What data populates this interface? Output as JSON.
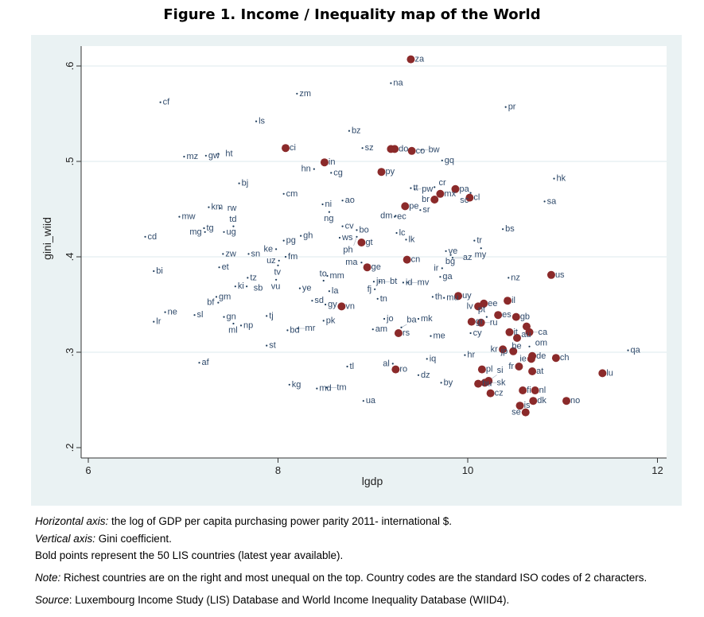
{
  "title": "Figure 1. Income / Inequality map of the World",
  "chart_data": {
    "type": "scatter",
    "xlabel": "lgdp",
    "ylabel": "gini_wiid",
    "xlim": [
      5.93,
      12.0
    ],
    "ylim": [
      0.19,
      0.62
    ],
    "xticks": [
      "6",
      "8",
      "10",
      "12"
    ],
    "yticks": [
      ".2",
      ".3",
      ".4",
      ".5",
      ".6"
    ],
    "xtick_values": [
      6,
      8,
      10,
      12
    ],
    "ytick_values": [
      0.2,
      0.3,
      0.4,
      0.5,
      0.6
    ],
    "grid": "horizontal",
    "colors": {
      "lis_marker": "#8B2A2A",
      "other_marker": "#1F3D5C",
      "label": "#2F4A6B",
      "grid": "#DCE9EC",
      "background": "#EAF2F3"
    },
    "points_other": [
      [
        "cf",
        6.76,
        0.562
      ],
      [
        "zm",
        8.2,
        0.571
      ],
      [
        "ls",
        7.77,
        0.542
      ],
      [
        "mz",
        7.01,
        0.505
      ],
      [
        "gw",
        7.24,
        0.506
      ],
      [
        "ht",
        7.37,
        0.508
      ],
      [
        "bj",
        7.59,
        0.477
      ],
      [
        "cm",
        8.06,
        0.466
      ],
      [
        "km",
        7.27,
        0.452
      ],
      [
        "rw",
        7.39,
        0.451
      ],
      [
        "mw",
        6.96,
        0.442
      ],
      [
        "tg",
        7.22,
        0.43
      ],
      [
        "mg",
        7.23,
        0.426
      ],
      [
        "ug",
        7.43,
        0.426
      ],
      [
        "td",
        7.53,
        0.432
      ],
      [
        "cd",
        6.6,
        0.421
      ],
      [
        "pg",
        8.06,
        0.417
      ],
      [
        "gh",
        8.24,
        0.422
      ],
      [
        "ke",
        7.98,
        0.408
      ],
      [
        "zw",
        7.42,
        0.403
      ],
      [
        "sn",
        7.69,
        0.403
      ],
      [
        "fm",
        8.08,
        0.4
      ],
      [
        "uz",
        8.01,
        0.396
      ],
      [
        "tv",
        8.0,
        0.391
      ],
      [
        "bi",
        6.69,
        0.385
      ],
      [
        "et",
        7.38,
        0.389
      ],
      [
        "tz",
        7.68,
        0.378
      ],
      [
        "vu",
        7.98,
        0.376
      ],
      [
        "ki",
        7.55,
        0.369
      ],
      [
        "sb",
        7.67,
        0.369
      ],
      [
        "ye",
        8.23,
        0.367
      ],
      [
        "gm",
        7.35,
        0.358
      ],
      [
        "bf",
        7.37,
        0.352
      ],
      [
        "ne",
        6.81,
        0.342
      ],
      [
        "sl",
        7.12,
        0.339
      ],
      [
        "lr",
        6.69,
        0.332
      ],
      [
        "gn",
        7.43,
        0.337
      ],
      [
        "ml",
        7.53,
        0.33
      ],
      [
        "np",
        7.61,
        0.328
      ],
      [
        "tj",
        7.88,
        0.338
      ],
      [
        "bd",
        8.1,
        0.323
      ],
      [
        "mr",
        8.21,
        0.325
      ],
      [
        "st",
        7.88,
        0.307
      ],
      [
        "af",
        7.17,
        0.289
      ],
      [
        "kg",
        8.12,
        0.266
      ],
      [
        "md",
        8.41,
        0.262
      ],
      [
        "tm",
        8.51,
        0.263
      ],
      [
        "ua",
        8.9,
        0.249
      ],
      [
        "tl",
        8.73,
        0.285
      ],
      [
        "ni",
        8.47,
        0.455
      ],
      [
        "ng",
        8.54,
        0.447
      ],
      [
        "ao",
        8.68,
        0.459
      ],
      [
        "hn",
        8.38,
        0.492
      ],
      [
        "cg",
        8.56,
        0.488
      ],
      [
        "bz",
        8.75,
        0.532
      ],
      [
        "sz",
        8.89,
        0.514
      ],
      [
        "na",
        9.19,
        0.582
      ],
      [
        "cv",
        8.68,
        0.432
      ],
      [
        "bo",
        8.83,
        0.428
      ],
      [
        "ws",
        8.65,
        0.42
      ],
      [
        "ph",
        8.83,
        0.421
      ],
      [
        "lc",
        9.25,
        0.425
      ],
      [
        "lk",
        9.35,
        0.418
      ],
      [
        "dm",
        9.24,
        0.443
      ],
      [
        "ec",
        9.23,
        0.442
      ],
      [
        "sr",
        9.5,
        0.449
      ],
      [
        "tt",
        9.4,
        0.472
      ],
      [
        "pw",
        9.44,
        0.471
      ],
      [
        "cr",
        9.65,
        0.473
      ],
      [
        "sc",
        10.03,
        0.467
      ],
      [
        "hk",
        10.91,
        0.482
      ],
      [
        "sa",
        10.81,
        0.458
      ],
      [
        "gq",
        9.73,
        0.501
      ],
      [
        "bw",
        9.51,
        0.512
      ],
      [
        "pr",
        10.4,
        0.557
      ],
      [
        "bs",
        10.37,
        0.429
      ],
      [
        "tr",
        10.07,
        0.417
      ],
      [
        "my",
        10.14,
        0.409
      ],
      [
        "ve",
        9.77,
        0.406
      ],
      [
        "bg",
        9.82,
        0.402
      ],
      [
        "az",
        9.84,
        0.399
      ],
      [
        "ma",
        8.88,
        0.394
      ],
      [
        "ir",
        9.73,
        0.388
      ],
      [
        "ga",
        9.71,
        0.379
      ],
      [
        "nz",
        10.43,
        0.378
      ],
      [
        "mm",
        8.52,
        0.38
      ],
      [
        "to",
        8.48,
        0.375
      ],
      [
        "la",
        8.54,
        0.364
      ],
      [
        "jm",
        9.01,
        0.374
      ],
      [
        "bt",
        9.07,
        0.374
      ],
      [
        "fj",
        9.02,
        0.366
      ],
      [
        "id",
        9.32,
        0.373
      ],
      [
        "mv",
        9.36,
        0.373
      ],
      [
        "tn",
        9.05,
        0.356
      ],
      [
        "th",
        9.63,
        0.358
      ],
      [
        "mu",
        9.75,
        0.357
      ],
      [
        "sd",
        8.36,
        0.354
      ],
      [
        "gy",
        8.5,
        0.35
      ],
      [
        "pk",
        8.48,
        0.333
      ],
      [
        "jo",
        9.12,
        0.335
      ],
      [
        "mk",
        9.48,
        0.335
      ],
      [
        "am",
        9.0,
        0.324
      ],
      [
        "ba",
        9.3,
        0.326
      ],
      [
        "me",
        9.61,
        0.317
      ],
      [
        "cy",
        10.03,
        0.32
      ],
      [
        "hr",
        9.97,
        0.297
      ],
      [
        "iq",
        9.57,
        0.293
      ],
      [
        "om",
        10.65,
        0.306
      ],
      [
        "qa",
        11.69,
        0.302
      ],
      [
        "dz",
        9.48,
        0.276
      ],
      [
        "by",
        9.72,
        0.268
      ],
      [
        "al",
        9.21,
        0.288
      ],
      [
        "pt",
        10.2,
        0.337
      ]
    ],
    "points_lis": [
      [
        "za",
        9.4,
        0.607
      ],
      [
        "ci",
        8.08,
        0.514
      ],
      [
        "",
        9.19,
        0.513
      ],
      [
        "do",
        9.23,
        0.513
      ],
      [
        "co",
        9.41,
        0.511
      ],
      [
        "in",
        8.49,
        0.499
      ],
      [
        "py",
        9.09,
        0.489
      ],
      [
        "pa",
        9.87,
        0.471
      ],
      [
        "mx",
        9.71,
        0.466
      ],
      [
        "br",
        9.65,
        0.46
      ],
      [
        "cl",
        10.02,
        0.462
      ],
      [
        "pe",
        9.34,
        0.453
      ],
      [
        "gt",
        8.88,
        0.415
      ],
      [
        "cn",
        9.36,
        0.397
      ],
      [
        "ge",
        8.94,
        0.389
      ],
      [
        "vn",
        8.67,
        0.348
      ],
      [
        "uy",
        9.9,
        0.359
      ],
      [
        "us",
        10.88,
        0.381
      ],
      [
        "ee",
        10.17,
        0.351
      ],
      [
        "lv",
        10.11,
        0.348
      ],
      [
        "es",
        10.32,
        0.339
      ],
      [
        "il",
        10.42,
        0.354
      ],
      [
        "gb",
        10.51,
        0.337
      ],
      [
        "gr",
        10.04,
        0.332
      ],
      [
        "ru",
        10.14,
        0.331
      ],
      [
        "au",
        10.62,
        0.327
      ],
      [
        "it",
        10.44,
        0.321
      ],
      [
        "ca",
        10.65,
        0.321
      ],
      [
        "be",
        10.52,
        0.315
      ],
      [
        "kr",
        10.37,
        0.303
      ],
      [
        "jp",
        10.48,
        0.301
      ],
      [
        "de",
        10.68,
        0.296
      ],
      [
        "ie",
        10.67,
        0.293
      ],
      [
        "ch",
        10.93,
        0.294
      ],
      [
        "fr",
        10.54,
        0.285
      ],
      [
        "at",
        10.68,
        0.28
      ],
      [
        "pl",
        10.15,
        0.282
      ],
      [
        "hu",
        10.11,
        0.267
      ],
      [
        "sk",
        10.18,
        0.268
      ],
      [
        "si",
        10.22,
        0.27
      ],
      [
        "cz",
        10.24,
        0.257
      ],
      [
        "fi",
        10.58,
        0.26
      ],
      [
        "nl",
        10.71,
        0.26
      ],
      [
        "dk",
        10.69,
        0.249
      ],
      [
        "no",
        11.04,
        0.249
      ],
      [
        "is",
        10.55,
        0.244
      ],
      [
        "se",
        10.61,
        0.237
      ],
      [
        "lu",
        11.42,
        0.278
      ],
      [
        "ro",
        9.24,
        0.282
      ],
      [
        "rs",
        9.27,
        0.32
      ]
    ]
  },
  "caption": {
    "line1_label": "Horizontal axis:",
    "line1_text": " the log of GDP per capita purchasing power parity 2011- international $.",
    "line2_label": "Vertical axis:",
    "line2_text": " Gini coefficient.",
    "line3_text": "Bold points represent the 50 LIS countries (latest year available).",
    "note_label": "Note:",
    "note_text": " Richest countries are on the right and most unequal on the top. Country codes are the standard ISO codes of 2 characters.",
    "source_label": "Source",
    "source_text": ": Luxembourg Income Study (LIS) Database and World Income Inequality Database (WIID4)."
  }
}
